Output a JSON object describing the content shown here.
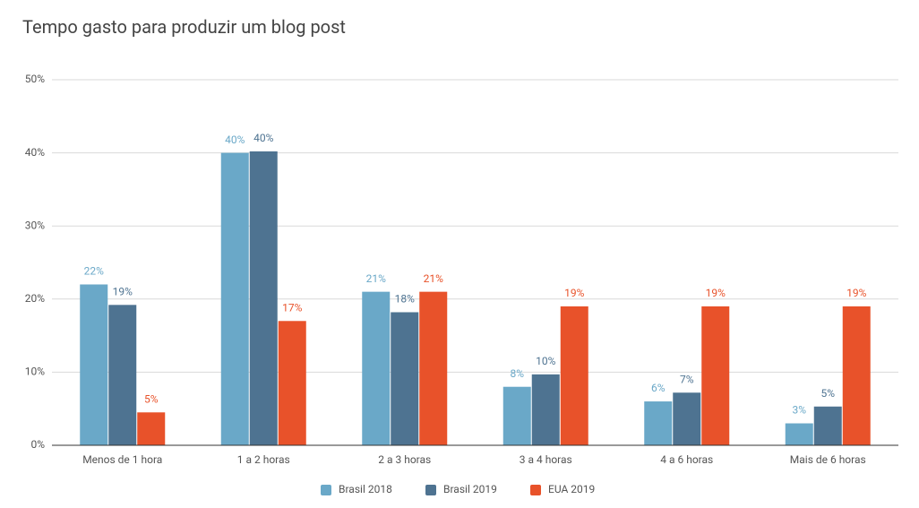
{
  "chart_data": {
    "type": "bar",
    "title": "Tempo gasto para produzir um blog post",
    "categories": [
      "Menos de 1 hora",
      "1 a 2 horas",
      "2 a 3 horas",
      "3 a 4 horas",
      "4 a 6 horas",
      "Mais de 6 horas"
    ],
    "series": [
      {
        "name": "Brasil 2018",
        "color": "#6aa8c8",
        "values": [
          22,
          40,
          21,
          8,
          6,
          3
        ],
        "value_labels": [
          "22%",
          "40%",
          "21%",
          "8%",
          "6%",
          "3%"
        ]
      },
      {
        "name": "Brasil 2019",
        "color": "#4e7391",
        "values": [
          19.2,
          40.2,
          18.2,
          9.7,
          7.2,
          5.3
        ],
        "value_labels": [
          "19%",
          "40%",
          "18%",
          "10%",
          "7%",
          "5%"
        ]
      },
      {
        "name": "EUA 2019",
        "color": "#e8522a",
        "values": [
          4.5,
          17,
          21,
          19,
          19,
          19
        ],
        "value_labels": [
          "5%",
          "17%",
          "21%",
          "19%",
          "19%",
          "19%"
        ]
      }
    ],
    "ylim": [
      0,
      50
    ],
    "yticks": [
      {
        "value": 0,
        "label": "0%"
      },
      {
        "value": 10,
        "label": "10%"
      },
      {
        "value": 20,
        "label": "20%"
      },
      {
        "value": 30,
        "label": "30%"
      },
      {
        "value": 40,
        "label": "40%"
      },
      {
        "value": 50,
        "label": "50%"
      }
    ],
    "grid": true,
    "legend": "bottom"
  }
}
